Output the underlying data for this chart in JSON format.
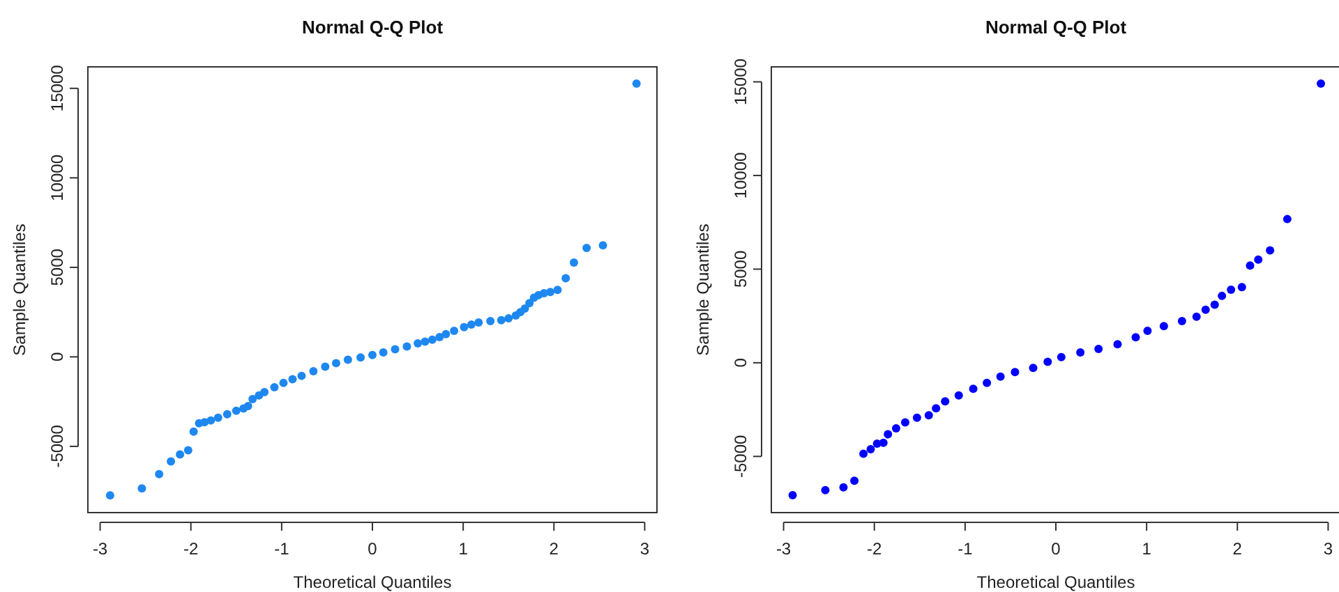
{
  "chart_data": [
    {
      "type": "scatter",
      "title": "Normal Q-Q Plot",
      "xlabel": "Theoretical Quantiles",
      "ylabel": "Sample Quantiles",
      "xlim": [
        -3.135,
        3.135
      ],
      "ylim": [
        -8700,
        16200
      ],
      "xticks": [
        {
          "value": -3,
          "label": "-3"
        },
        {
          "value": -2,
          "label": "-2"
        },
        {
          "value": -1,
          "label": "-1"
        },
        0,
        1,
        2,
        3
      ],
      "yticks": [
        {
          "value": -5000,
          "label": "-5000"
        },
        0,
        5000,
        10000,
        15000
      ],
      "marker": "circle",
      "grid": false,
      "series": [
        {
          "color": "#1e88f0",
          "x": [
            -2.89,
            -2.54,
            -2.35,
            -2.22,
            -2.12,
            -2.03,
            -1.97,
            -1.91,
            -1.85,
            -1.78,
            -1.7,
            -1.6,
            -1.5,
            -1.42,
            -1.37,
            -1.32,
            -1.25,
            -1.19,
            -1.08,
            -0.98,
            -0.88,
            -0.78,
            -0.65,
            -0.52,
            -0.4,
            -0.27,
            -0.13,
            0,
            0.12,
            0.25,
            0.38,
            0.5,
            0.58,
            0.66,
            0.74,
            0.81,
            0.9,
            1.01,
            1.09,
            1.17,
            1.3,
            1.42,
            1.5,
            1.58,
            1.63,
            1.68,
            1.73,
            1.78,
            1.83,
            1.89,
            1.96,
            2.04,
            2.13,
            2.22,
            2.36,
            2.54,
            2.91
          ],
          "values": [
            -7740,
            -7350,
            -6550,
            -5840,
            -5450,
            -5220,
            -4180,
            -3710,
            -3650,
            -3550,
            -3400,
            -3200,
            -3010,
            -2880,
            -2750,
            -2360,
            -2150,
            -1970,
            -1700,
            -1450,
            -1250,
            -1060,
            -800,
            -550,
            -350,
            -160,
            -30,
            100,
            250,
            420,
            580,
            750,
            850,
            960,
            1100,
            1270,
            1450,
            1660,
            1800,
            1920,
            2000,
            2050,
            2150,
            2310,
            2500,
            2700,
            3000,
            3300,
            3450,
            3560,
            3620,
            3740,
            4390,
            5270,
            6080,
            6230,
            15270
          ]
        }
      ]
    },
    {
      "type": "scatter",
      "title": "Normal Q-Q Plot",
      "xlabel": "Theoretical Quantiles",
      "ylabel": "Sample Quantiles",
      "xlim": [
        -3.135,
        3.135
      ],
      "ylim": [
        -8000,
        15800
      ],
      "xticks": [
        {
          "value": -3,
          "label": "-3"
        },
        {
          "value": -2,
          "label": "-2"
        },
        {
          "value": -1,
          "label": "-1"
        },
        0,
        1,
        2,
        3
      ],
      "yticks": [
        {
          "value": -5000,
          "label": "-5000"
        },
        0,
        5000,
        10000,
        15000
      ],
      "marker": "circle",
      "grid": false,
      "series": [
        {
          "color": "#0000ff",
          "x": [
            -2.9,
            -2.54,
            -2.34,
            -2.22,
            -2.12,
            -2.04,
            -1.97,
            -1.9,
            -1.85,
            -1.76,
            -1.66,
            -1.53,
            -1.4,
            -1.32,
            -1.22,
            -1.07,
            -0.91,
            -0.76,
            -0.61,
            -0.45,
            -0.25,
            -0.09,
            0.06,
            0.27,
            0.47,
            0.68,
            0.88,
            1.01,
            1.19,
            1.39,
            1.55,
            1.65,
            1.75,
            1.83,
            1.93,
            2.05,
            2.14,
            2.23,
            2.36,
            2.55,
            2.92
          ],
          "values": [
            -7070,
            -6800,
            -6650,
            -6300,
            -4860,
            -4620,
            -4320,
            -4270,
            -3820,
            -3500,
            -3180,
            -2930,
            -2800,
            -2430,
            -2060,
            -1740,
            -1390,
            -1070,
            -740,
            -500,
            -270,
            50,
            300,
            550,
            740,
            990,
            1360,
            1710,
            1960,
            2230,
            2460,
            2830,
            3100,
            3570,
            3900,
            4040,
            5190,
            5510,
            6000,
            7670,
            14910
          ]
        }
      ]
    }
  ]
}
